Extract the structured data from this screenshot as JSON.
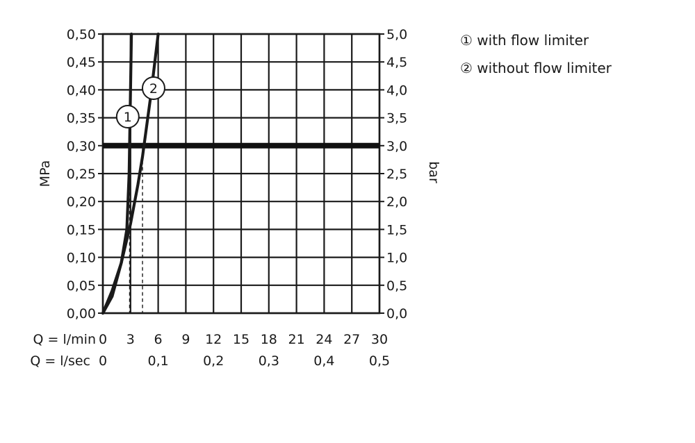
{
  "chart_data": {
    "type": "line",
    "x_axis_primary": {
      "label": "Q = l/min",
      "ticks": [
        "0",
        "3",
        "6",
        "9",
        "12",
        "15",
        "18",
        "21",
        "24",
        "27",
        "30"
      ],
      "range": [
        0,
        30
      ]
    },
    "x_axis_secondary": {
      "label": "Q = l/sec",
      "ticks": [
        {
          "value": 0,
          "label": "0"
        },
        {
          "value": 6,
          "label": "0,1"
        },
        {
          "value": 12,
          "label": "0,2"
        },
        {
          "value": 18,
          "label": "0,3"
        },
        {
          "value": 24,
          "label": "0,4"
        },
        {
          "value": 30,
          "label": "0,5"
        }
      ]
    },
    "y_axis_left": {
      "label": "MPa",
      "ticks": [
        "0,00",
        "0,05",
        "0,10",
        "0,15",
        "0,20",
        "0,25",
        "0,30",
        "0,35",
        "0,40",
        "0,45",
        "0,50"
      ],
      "range": [
        0,
        0.5
      ]
    },
    "y_axis_right": {
      "label": "bar",
      "ticks": [
        "0,0",
        "0,5",
        "1,0",
        "1,5",
        "2,0",
        "2,5",
        "3,0",
        "3,5",
        "4,0",
        "4,5",
        "5,0"
      ],
      "range": [
        0,
        5
      ]
    },
    "grid": true,
    "reference_line": {
      "y": 0.3
    },
    "series": [
      {
        "name": "1",
        "x": [
          0,
          1,
          2,
          2.6,
          2.85,
          3.0,
          3.1
        ],
        "y": [
          0,
          0.04,
          0.09,
          0.15,
          0.25,
          0.4,
          0.5
        ],
        "drop_x": 2.9
      },
      {
        "name": "2",
        "x": [
          0,
          1,
          2,
          3,
          3.8,
          4.3,
          5.2,
          6.0
        ],
        "y": [
          0,
          0.03,
          0.09,
          0.16,
          0.23,
          0.28,
          0.39,
          0.5
        ],
        "drop_x": 4.3
      }
    ],
    "curve_markers": [
      {
        "label": "1",
        "x": 2.7,
        "y": 0.352
      },
      {
        "label": "2",
        "x": 5.5,
        "y": 0.403
      }
    ],
    "legend": {
      "position": "top-right",
      "entries": [
        "① with flow limiter",
        "② without flow limiter"
      ]
    }
  }
}
